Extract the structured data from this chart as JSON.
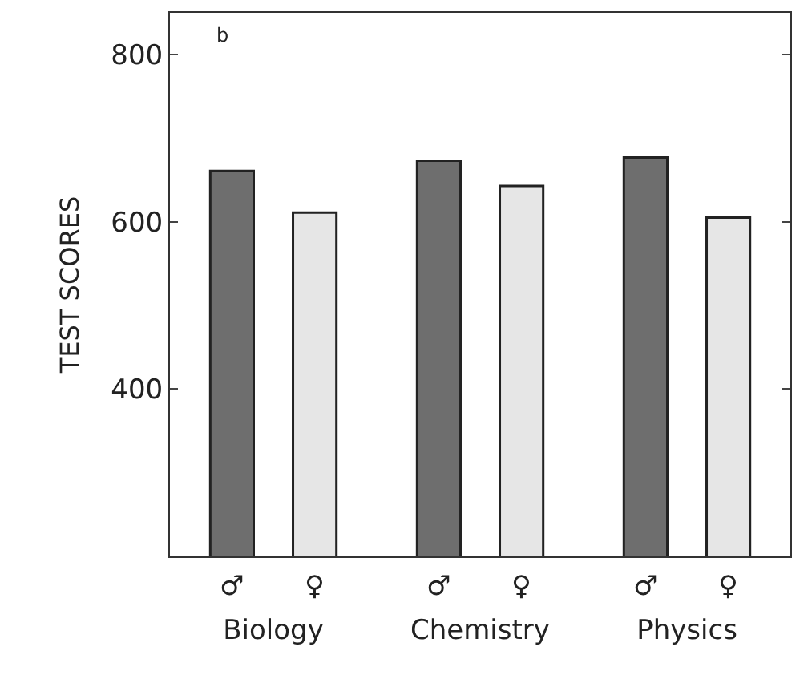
{
  "chart_data": {
    "type": "bar",
    "ylabel": "TEST SCORES",
    "categories": [
      "Biology",
      "Chemistry",
      "Physics"
    ],
    "series": [
      {
        "name": "♂",
        "color": "#6e6e6e",
        "values": [
          661,
          673,
          677
        ]
      },
      {
        "name": "♀",
        "color": "#e6e6e6",
        "values": [
          611,
          643,
          605
        ]
      }
    ],
    "ylim": [
      200,
      850
    ],
    "yticks": [
      400,
      600,
      800
    ],
    "legend": false,
    "annotations": [
      "b"
    ]
  }
}
